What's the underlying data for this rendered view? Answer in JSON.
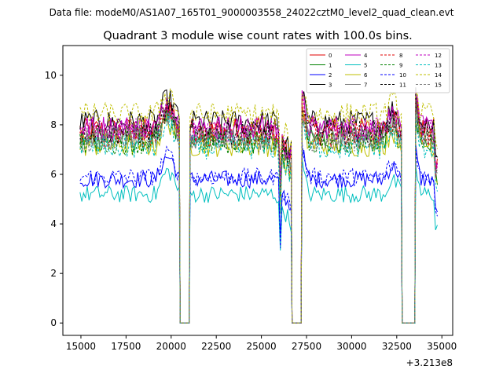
{
  "chart_data": {
    "type": "line",
    "suptitle": "Data file: modeM0/AS1A07_165T01_9000003558_24022cztM0_level2_quad_clean.evt",
    "title": "Quadrant 3 module wise count rates with 100.0s bins.",
    "xlabel": "",
    "ylabel": "",
    "x_offset_label": "+3.213e8",
    "xlim": [
      14000,
      35600
    ],
    "ylim": [
      -0.5,
      11.2
    ],
    "xticks": [
      15000,
      17500,
      20000,
      22500,
      25000,
      27500,
      30000,
      32500,
      35000
    ],
    "yticks": [
      0,
      2,
      4,
      6,
      8,
      10
    ],
    "segments": [
      {
        "start": 14950,
        "end": 20450
      },
      {
        "start": 21050,
        "end": 26650
      },
      {
        "start": 27250,
        "end": 32750
      },
      {
        "start": 33550,
        "end": 34750
      }
    ],
    "gaps_at_zero": [
      [
        20500,
        21000
      ],
      [
        26700,
        27200
      ],
      [
        32800,
        33500
      ]
    ],
    "series": [
      {
        "name": "0",
        "color": "#e00000",
        "dash": "solid",
        "level": 7.8
      },
      {
        "name": "1",
        "color": "#008000",
        "dash": "solid",
        "level": 7.4
      },
      {
        "name": "2",
        "color": "#0000ff",
        "dash": "solid",
        "level": 5.8
      },
      {
        "name": "3",
        "color": "#000000",
        "dash": "solid",
        "level": 8.1
      },
      {
        "name": "4",
        "color": "#bf00bf",
        "dash": "solid",
        "level": 7.9
      },
      {
        "name": "5",
        "color": "#00bfbf",
        "dash": "solid",
        "level": 5.2
      },
      {
        "name": "6",
        "color": "#bfbf00",
        "dash": "solid",
        "level": 7.2
      },
      {
        "name": "7",
        "color": "#808080",
        "dash": "solid",
        "level": 7.5
      },
      {
        "name": "8",
        "color": "#e00000",
        "dash": "dashed",
        "level": 7.6
      },
      {
        "name": "9",
        "color": "#008000",
        "dash": "dashed",
        "level": 7.3
      },
      {
        "name": "10",
        "color": "#0000ff",
        "dash": "dashed",
        "level": 5.9
      },
      {
        "name": "11",
        "color": "#000000",
        "dash": "dashed",
        "level": 7.7
      },
      {
        "name": "12",
        "color": "#bf00bf",
        "dash": "dashed",
        "level": 7.8
      },
      {
        "name": "13",
        "color": "#00bfbf",
        "dash": "dashed",
        "level": 7.1
      },
      {
        "name": "14",
        "color": "#bfbf00",
        "dash": "dashed",
        "level": 8.4
      },
      {
        "name": "15",
        "color": "#808080",
        "dash": "dashed",
        "level": 7.4
      }
    ],
    "legend_location": "top-right",
    "legend_columns": 4
  }
}
